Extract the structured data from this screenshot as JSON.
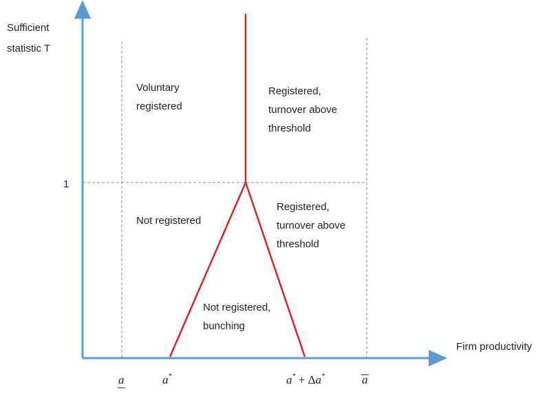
{
  "y_axis": {
    "label": [
      "Sufficient",
      "statistic T"
    ],
    "tick": "1"
  },
  "x_axis": {
    "label": "Firm productivity",
    "ticks": [
      [
        "a"
      ],
      [
        "a",
        "*"
      ],
      [
        "a",
        "*",
        " + Δ",
        "a",
        "*"
      ],
      [
        "a"
      ]
    ]
  },
  "regions": [
    {
      "lines": [
        "Voluntary",
        "registered"
      ]
    },
    {
      "lines": [
        "Registered,",
        "turnover above",
        "threshold"
      ]
    },
    {
      "lines": [
        "Not registered"
      ]
    },
    {
      "lines": [
        "Registered,",
        "turnover above",
        "threshold"
      ]
    },
    {
      "lines": [
        "Not registered,",
        "bunching"
      ]
    }
  ]
}
